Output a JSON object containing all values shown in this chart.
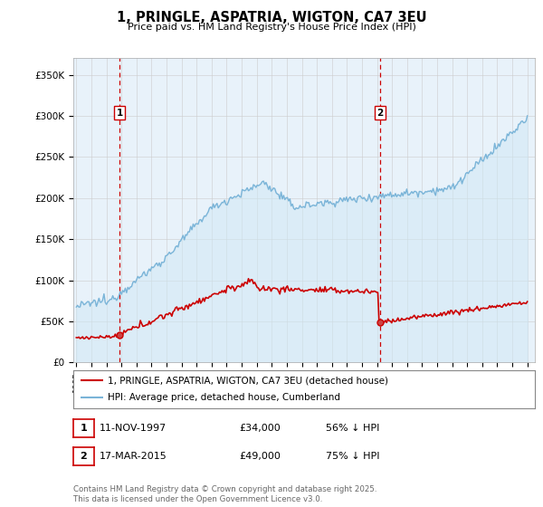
{
  "title": "1, PRINGLE, ASPATRIA, WIGTON, CA7 3EU",
  "subtitle": "Price paid vs. HM Land Registry's House Price Index (HPI)",
  "ylabel_ticks": [
    "£0",
    "£50K",
    "£100K",
    "£150K",
    "£200K",
    "£250K",
    "£300K",
    "£350K"
  ],
  "ytick_values": [
    0,
    50000,
    100000,
    150000,
    200000,
    250000,
    300000,
    350000
  ],
  "ylim": [
    0,
    370000
  ],
  "xlim_start": 1994.8,
  "xlim_end": 2025.5,
  "hpi_color": "#7ab4d8",
  "hpi_fill_color": "#d0e8f5",
  "price_color": "#cc0000",
  "vline_color": "#cc0000",
  "transaction1_year": 1997.87,
  "transaction1_price": 34000,
  "transaction2_year": 2015.21,
  "transaction2_price": 49000,
  "legend_label1": "1, PRINGLE, ASPATRIA, WIGTON, CA7 3EU (detached house)",
  "legend_label2": "HPI: Average price, detached house, Cumberland",
  "table_row1": [
    "1",
    "11-NOV-1997",
    "£34,000",
    "56% ↓ HPI"
  ],
  "table_row2": [
    "2",
    "17-MAR-2015",
    "£49,000",
    "75% ↓ HPI"
  ],
  "footer": "Contains HM Land Registry data © Crown copyright and database right 2025.\nThis data is licensed under the Open Government Licence v3.0.",
  "background_color": "#ffffff",
  "grid_color": "#cccccc",
  "chart_bg_color": "#e8f2fa"
}
